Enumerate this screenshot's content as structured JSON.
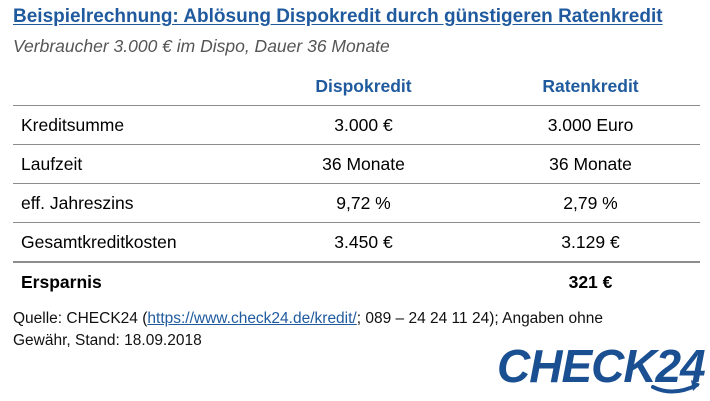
{
  "title": "Beispielrechnung: Ablösung Dispokredit durch günstigeren Ratenkredit",
  "subtitle": "Verbraucher 3.000 € im Dispo, Dauer 36 Monate",
  "table": {
    "headers": [
      "",
      "Dispokredit",
      "Ratenkredit"
    ],
    "rows": [
      {
        "label": "Kreditsumme",
        "dispo": "3.000 €",
        "raten": "3.000 Euro"
      },
      {
        "label": "Laufzeit",
        "dispo": "36 Monate",
        "raten": "36 Monate"
      },
      {
        "label": "eff. Jahreszins",
        "dispo": "9,72 %",
        "raten": "2,79 %"
      },
      {
        "label": "Gesamtkreditkosten",
        "dispo": "3.450 €",
        "raten": "3.129 €"
      }
    ],
    "total": {
      "label": "Ersparnis",
      "dispo": "",
      "raten": "321 €"
    }
  },
  "source": {
    "prefix": "Quelle: CHECK24 (",
    "link": "https://www.check24.de/kredit/",
    "suffix": "; 089 – 24 24 11 24); Angaben ohne Gewähr, Stand: 18.09.2018"
  },
  "logo": {
    "text": "CHECK24",
    "color": "#1a4f91"
  },
  "colors": {
    "accent": "#1f5a9e",
    "rule": "#8c8c8c"
  }
}
